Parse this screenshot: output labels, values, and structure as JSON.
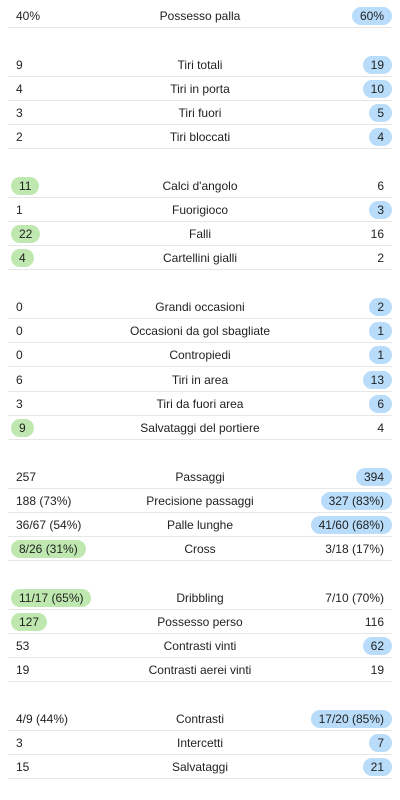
{
  "colors": {
    "home_highlight": "#bfe8b0",
    "away_highlight": "#b8dcfa",
    "divider": "#e6e6e6",
    "text": "#222222"
  },
  "groups": [
    {
      "rows": [
        {
          "label": "Possesso palla",
          "home": "40%",
          "away": "60%",
          "leader": "away"
        }
      ]
    },
    {
      "rows": [
        {
          "label": "Tiri totali",
          "home": "9",
          "away": "19",
          "leader": "away"
        },
        {
          "label": "Tiri in porta",
          "home": "4",
          "away": "10",
          "leader": "away"
        },
        {
          "label": "Tiri fuori",
          "home": "3",
          "away": "5",
          "leader": "away"
        },
        {
          "label": "Tiri bloccati",
          "home": "2",
          "away": "4",
          "leader": "away"
        }
      ]
    },
    {
      "rows": [
        {
          "label": "Calci d'angolo",
          "home": "11",
          "away": "6",
          "leader": "home"
        },
        {
          "label": "Fuorigioco",
          "home": "1",
          "away": "3",
          "leader": "away"
        },
        {
          "label": "Falli",
          "home": "22",
          "away": "16",
          "leader": "home"
        },
        {
          "label": "Cartellini gialli",
          "home": "4",
          "away": "2",
          "leader": "home"
        }
      ]
    },
    {
      "rows": [
        {
          "label": "Grandi occasioni",
          "home": "0",
          "away": "2",
          "leader": "away"
        },
        {
          "label": "Occasioni da gol sbagliate",
          "home": "0",
          "away": "1",
          "leader": "away"
        },
        {
          "label": "Contropiedi",
          "home": "0",
          "away": "1",
          "leader": "away"
        },
        {
          "label": "Tiri in area",
          "home": "6",
          "away": "13",
          "leader": "away"
        },
        {
          "label": "Tiri da fuori area",
          "home": "3",
          "away": "6",
          "leader": "away"
        },
        {
          "label": "Salvataggi del portiere",
          "home": "9",
          "away": "4",
          "leader": "home"
        }
      ]
    },
    {
      "rows": [
        {
          "label": "Passaggi",
          "home": "257",
          "away": "394",
          "leader": "away"
        },
        {
          "label": "Precisione passaggi",
          "home": "188 (73%)",
          "away": "327 (83%)",
          "leader": "away"
        },
        {
          "label": "Palle lunghe",
          "home": "36/67 (54%)",
          "away": "41/60 (68%)",
          "leader": "away"
        },
        {
          "label": "Cross",
          "home": "8/26 (31%)",
          "away": "3/18 (17%)",
          "leader": "home"
        }
      ]
    },
    {
      "rows": [
        {
          "label": "Dribbling",
          "home": "11/17 (65%)",
          "away": "7/10 (70%)",
          "leader": "home"
        },
        {
          "label": "Possesso perso",
          "home": "127",
          "away": "116",
          "leader": "home"
        },
        {
          "label": "Contrasti vinti",
          "home": "53",
          "away": "62",
          "leader": "away"
        },
        {
          "label": "Contrasti aerei vinti",
          "home": "19",
          "away": "19",
          "leader": "none"
        }
      ]
    },
    {
      "rows": [
        {
          "label": "Contrasti",
          "home": "4/9 (44%)",
          "away": "17/20 (85%)",
          "leader": "away"
        },
        {
          "label": "Intercetti",
          "home": "3",
          "away": "7",
          "leader": "away"
        },
        {
          "label": "Salvataggi",
          "home": "15",
          "away": "21",
          "leader": "away"
        }
      ]
    }
  ]
}
